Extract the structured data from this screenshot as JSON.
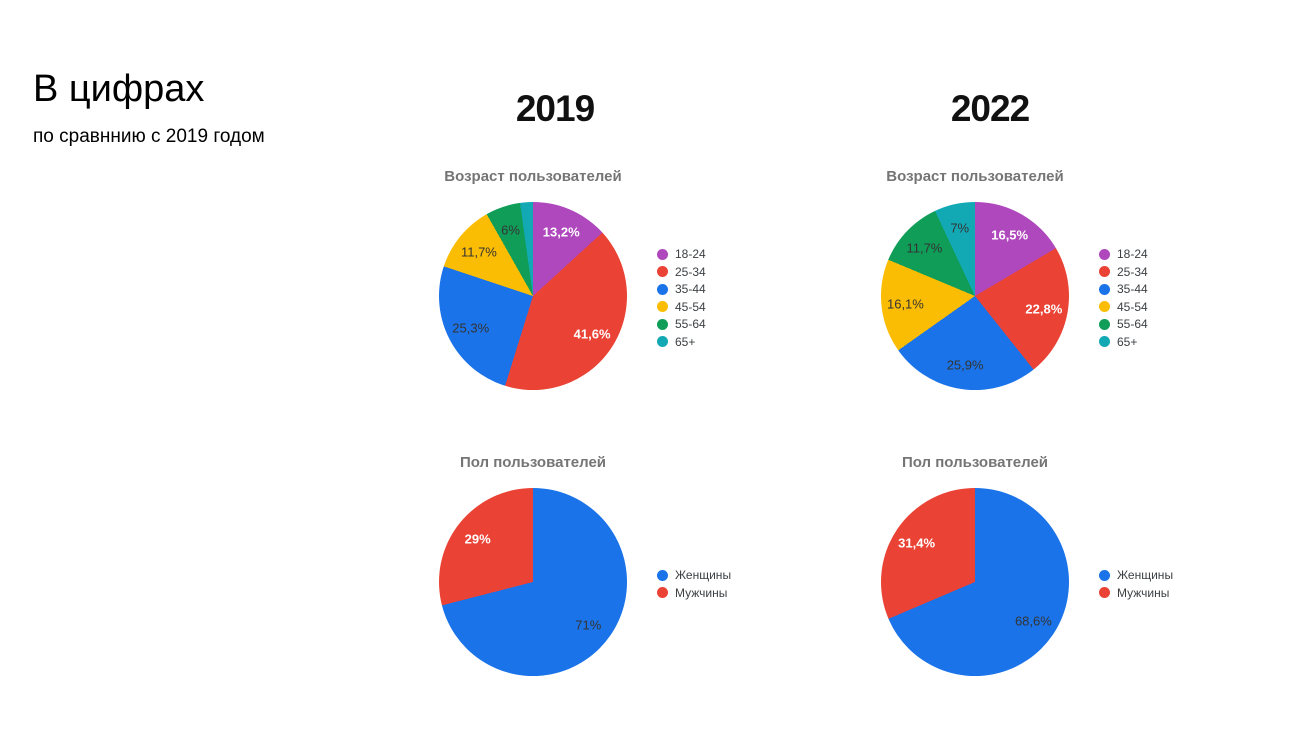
{
  "slide": {
    "title": "В цифрах",
    "subtitle": "по сравннию с 2019 годом",
    "column_headers": [
      "2019",
      "2022"
    ]
  },
  "palette": {
    "purple": "#AF47BD",
    "red": "#EA4335",
    "blue": "#1A73E8",
    "yellow": "#FBBC04",
    "green": "#0F9D58",
    "teal": "#12A9B5"
  },
  "chart_data": [
    {
      "type": "pie",
      "year": "2019",
      "title": "Возраст пользователей",
      "legend_position": "right",
      "slices": [
        {
          "label": "18-24",
          "value": 13.2,
          "display": "13,2%",
          "color": "#AF47BD",
          "text": "light"
        },
        {
          "label": "25-34",
          "value": 41.6,
          "display": "41,6%",
          "color": "#EA4335",
          "text": "light"
        },
        {
          "label": "35-44",
          "value": 25.3,
          "display": "25,3%",
          "color": "#1A73E8",
          "text": "dark"
        },
        {
          "label": "45-54",
          "value": 11.7,
          "display": "11,7%",
          "color": "#FBBC04",
          "text": "dark"
        },
        {
          "label": "55-64",
          "value": 6.0,
          "display": "6%",
          "color": "#0F9D58",
          "text": "dark"
        },
        {
          "label": "65+",
          "value": 2.2,
          "display": "",
          "color": "#12A9B5",
          "text": "dark"
        }
      ]
    },
    {
      "type": "pie",
      "year": "2022",
      "title": "Возраст пользователей",
      "legend_position": "right",
      "slices": [
        {
          "label": "18-24",
          "value": 16.5,
          "display": "16,5%",
          "color": "#AF47BD",
          "text": "light"
        },
        {
          "label": "25-34",
          "value": 22.8,
          "display": "22,8%",
          "color": "#EA4335",
          "text": "light"
        },
        {
          "label": "35-44",
          "value": 25.9,
          "display": "25,9%",
          "color": "#1A73E8",
          "text": "dark"
        },
        {
          "label": "45-54",
          "value": 16.1,
          "display": "16,1%",
          "color": "#FBBC04",
          "text": "dark"
        },
        {
          "label": "55-64",
          "value": 11.7,
          "display": "11,7%",
          "color": "#0F9D58",
          "text": "dark"
        },
        {
          "label": "65+",
          "value": 7.0,
          "display": "7%",
          "color": "#12A9B5",
          "text": "dark"
        }
      ]
    },
    {
      "type": "pie",
      "year": "2019",
      "title": "Пол пользователей",
      "legend_position": "right",
      "slices": [
        {
          "label": "Женщины",
          "value": 71.0,
          "display": "71%",
          "color": "#1A73E8",
          "text": "dark"
        },
        {
          "label": "Мужчины",
          "value": 29.0,
          "display": "29%",
          "color": "#EA4335",
          "text": "light"
        }
      ]
    },
    {
      "type": "pie",
      "year": "2022",
      "title": "Пол пользователей",
      "legend_position": "right",
      "slices": [
        {
          "label": "Женщины",
          "value": 68.6,
          "display": "68,6%",
          "color": "#1A73E8",
          "text": "dark"
        },
        {
          "label": "Мужчины",
          "value": 31.4,
          "display": "31,4%",
          "color": "#EA4335",
          "text": "light"
        }
      ]
    }
  ]
}
